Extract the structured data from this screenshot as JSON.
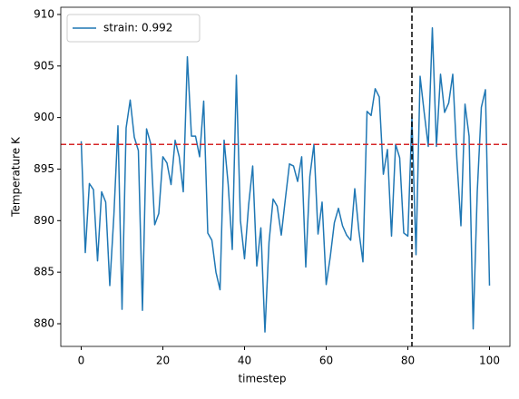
{
  "chart_data": {
    "type": "line",
    "xlabel": "timestep",
    "ylabel": "Temperature K",
    "x": [
      0,
      1,
      2,
      3,
      4,
      5,
      6,
      7,
      8,
      9,
      10,
      11,
      12,
      13,
      14,
      15,
      16,
      17,
      18,
      19,
      20,
      21,
      22,
      23,
      24,
      25,
      26,
      27,
      28,
      29,
      30,
      31,
      32,
      33,
      34,
      35,
      36,
      37,
      38,
      39,
      40,
      41,
      42,
      43,
      44,
      45,
      46,
      47,
      48,
      49,
      50,
      51,
      52,
      53,
      54,
      55,
      56,
      57,
      58,
      59,
      60,
      61,
      62,
      63,
      64,
      65,
      66,
      67,
      68,
      69,
      70,
      71,
      72,
      73,
      74,
      75,
      76,
      77,
      78,
      79,
      80,
      81,
      82,
      83,
      84,
      85,
      86,
      87,
      88,
      89,
      90,
      91,
      92,
      93,
      94,
      95,
      96,
      97,
      98,
      99,
      100
    ],
    "series": [
      {
        "name": "strain: 0.992",
        "color": "#1f77b4",
        "values": [
          897.7,
          886.9,
          893.6,
          893.0,
          886.1,
          892.8,
          891.8,
          883.7,
          890.5,
          899.2,
          881.4,
          899.0,
          901.7,
          898.1,
          896.8,
          881.3,
          898.9,
          897.5,
          889.6,
          890.7,
          896.2,
          895.6,
          893.5,
          897.8,
          896.2,
          892.8,
          905.9,
          898.2,
          898.2,
          896.2,
          901.6,
          888.8,
          888.1,
          885.0,
          883.3,
          897.8,
          893.5,
          887.2,
          904.1,
          890.0,
          886.3,
          891.5,
          895.3,
          885.6,
          889.3,
          879.2,
          887.9,
          892.1,
          891.4,
          888.6,
          892.1,
          895.5,
          895.3,
          893.8,
          896.2,
          885.5,
          894.3,
          897.4,
          888.7,
          891.8,
          883.8,
          886.5,
          889.8,
          891.2,
          889.5,
          888.6,
          888.1,
          893.1,
          889.0,
          886.0,
          900.6,
          900.2,
          902.8,
          902.0,
          894.5,
          896.9,
          888.5,
          897.4,
          896.1,
          888.8,
          888.5,
          900.0,
          886.7,
          904.0,
          900.5,
          897.2,
          908.7,
          897.2,
          904.2,
          900.5,
          901.4,
          904.2,
          896.0,
          889.5,
          901.3,
          898.2,
          879.5,
          892.8,
          901.0,
          902.7,
          883.7
        ]
      }
    ],
    "xlim": [
      -5,
      105
    ],
    "xticks": [
      0,
      20,
      40,
      60,
      80,
      100
    ],
    "ylim": [
      877.8,
      910.7
    ],
    "yticks": [
      880,
      885,
      890,
      895,
      900,
      905,
      910
    ],
    "hlines": [
      {
        "y": 897.4,
        "color": "#d62728"
      }
    ],
    "vlines": [
      {
        "x": 81,
        "color": "#000000"
      }
    ],
    "legend": "upper left"
  }
}
